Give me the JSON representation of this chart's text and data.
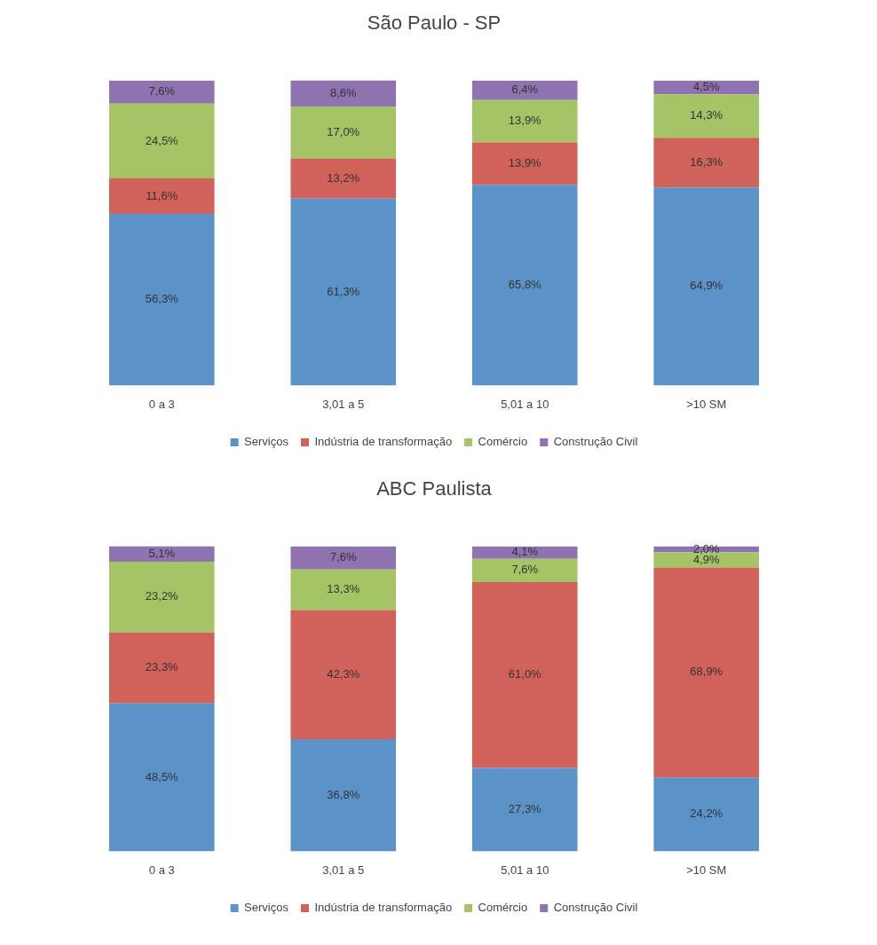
{
  "chart_data": [
    {
      "type": "bar",
      "title": "São Paulo - SP",
      "categories": [
        "0 a 3",
        "3,01 a 5",
        "5,01 a 10",
        ">10 SM"
      ],
      "stacked": true,
      "legend": "bottom",
      "grid": false,
      "tick_labels": "x",
      "series": [
        {
          "name": "Serviços",
          "color": "#5b93c9",
          "values": [
            56.3,
            61.3,
            65.8,
            64.9
          ],
          "value_labels": [
            "56,3%",
            "61,3%",
            "65,8%",
            "64,9%"
          ]
        },
        {
          "name": "Indústria de transformação",
          "color": "#d0625a",
          "values": [
            11.6,
            13.2,
            13.9,
            16.3
          ],
          "value_labels": [
            "11,6%",
            "13,2%",
            "13,9%",
            "16,3%"
          ]
        },
        {
          "name": "Comércio",
          "color": "#a4c466",
          "values": [
            24.5,
            17.0,
            13.9,
            14.3
          ],
          "value_labels": [
            "24,5%",
            "17,0%",
            "13,9%",
            "14,3%"
          ]
        },
        {
          "name": "Construção Civil",
          "color": "#8f72b0",
          "values": [
            7.6,
            8.6,
            6.4,
            4.5
          ],
          "value_labels": [
            "7,6%",
            "8,6%",
            "6,4%",
            "4,5%"
          ]
        }
      ]
    },
    {
      "type": "bar",
      "title": "ABC Paulista",
      "categories": [
        "0 a 3",
        "3,01 a 5",
        "5,01 a 10",
        ">10 SM"
      ],
      "stacked": true,
      "legend": "bottom",
      "grid": false,
      "tick_labels": "x",
      "series": [
        {
          "name": "Serviços",
          "color": "#5b93c9",
          "values": [
            48.5,
            36.8,
            27.3,
            24.2
          ],
          "value_labels": [
            "48,5%",
            "36,8%",
            "27,3%",
            "24,2%"
          ]
        },
        {
          "name": "Indústria de transformação",
          "color": "#d0625a",
          "values": [
            23.3,
            42.3,
            61.0,
            68.9
          ],
          "value_labels": [
            "23,3%",
            "42,3%",
            "61,0%",
            "68,9%"
          ]
        },
        {
          "name": "Comércio",
          "color": "#a4c466",
          "values": [
            23.2,
            13.3,
            7.6,
            4.9
          ],
          "value_labels": [
            "23,2%",
            "13,3%",
            "7,6%",
            "4,9%"
          ]
        },
        {
          "name": "Construção Civil",
          "color": "#8f72b0",
          "values": [
            5.1,
            7.6,
            4.1,
            2.0
          ],
          "value_labels": [
            "5,1%",
            "7,6%",
            "4,1%",
            "2,0%"
          ]
        }
      ]
    }
  ]
}
